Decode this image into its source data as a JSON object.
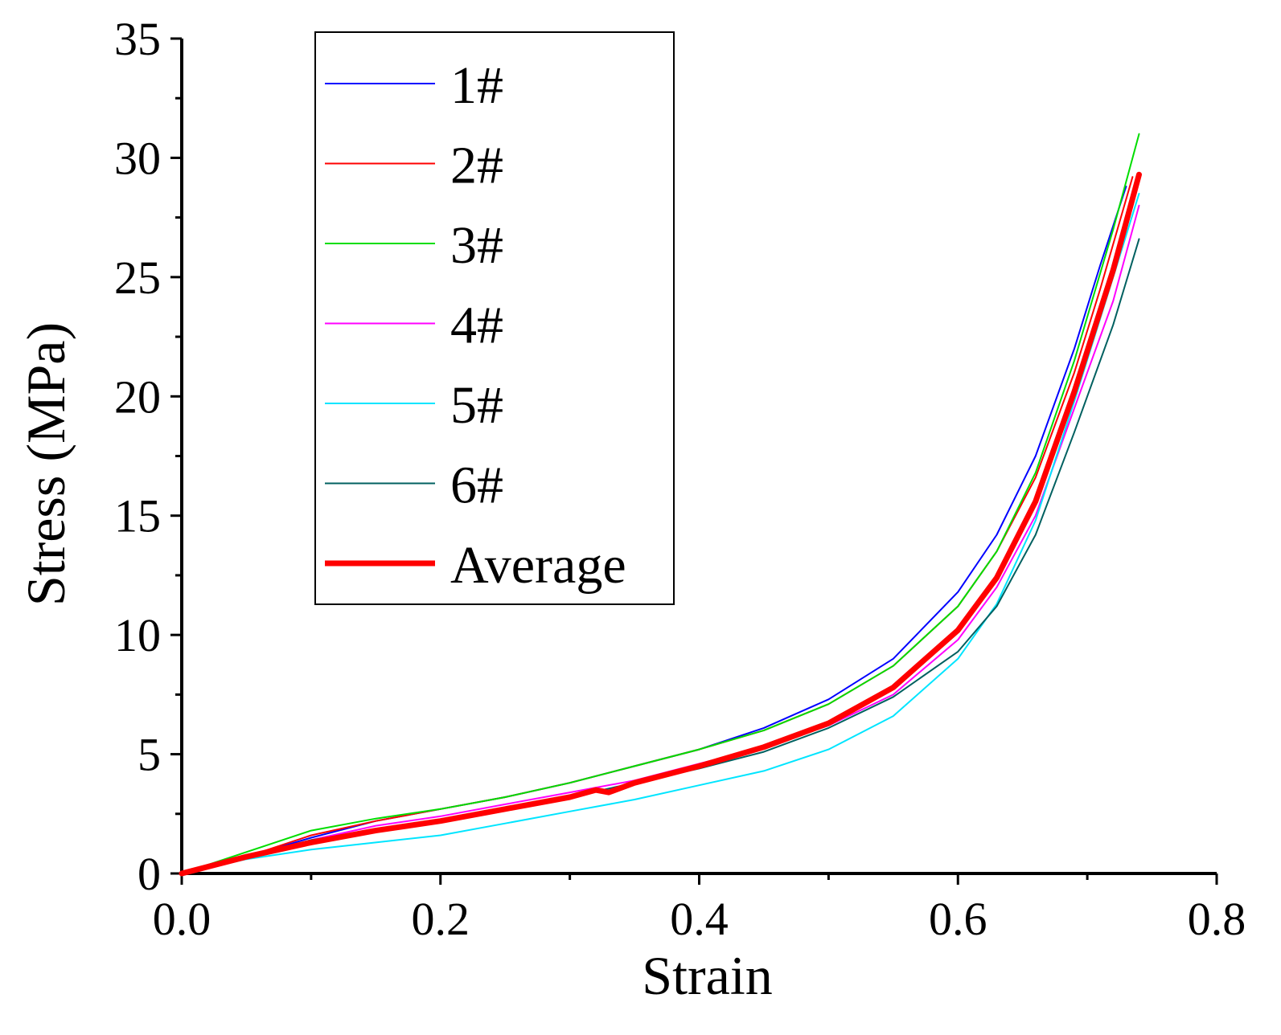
{
  "chart_data": {
    "type": "line",
    "title": "",
    "xlabel": "Strain",
    "ylabel": "Stress (MPa)",
    "xlim": [
      0,
      0.8
    ],
    "ylim": [
      0,
      35
    ],
    "xticks": [
      "0.0",
      "0.2",
      "0.4",
      "0.6",
      "0.8"
    ],
    "yticks": [
      "0",
      "5",
      "10",
      "15",
      "20",
      "25",
      "30",
      "35"
    ],
    "grid": false,
    "legend_position": "top-left",
    "series": [
      {
        "name": "1#",
        "color": "#0000ff",
        "width": 2,
        "x": [
          0,
          0.05,
          0.1,
          0.15,
          0.2,
          0.25,
          0.3,
          0.35,
          0.4,
          0.45,
          0.5,
          0.55,
          0.6,
          0.63,
          0.66,
          0.69,
          0.71,
          0.73
        ],
        "y": [
          0,
          0.7,
          1.5,
          2.2,
          2.7,
          3.2,
          3.8,
          4.5,
          5.2,
          6.1,
          7.3,
          9.0,
          11.8,
          14.2,
          17.5,
          22.0,
          25.5,
          28.8
        ]
      },
      {
        "name": "2#",
        "color": "#ff0000",
        "width": 2,
        "x": [
          0,
          0.05,
          0.1,
          0.15,
          0.2,
          0.25,
          0.3,
          0.35,
          0.4,
          0.45,
          0.5,
          0.55,
          0.6,
          0.63,
          0.66,
          0.69,
          0.71,
          0.735
        ],
        "y": [
          0,
          0.7,
          1.6,
          2.2,
          2.7,
          3.2,
          3.8,
          4.5,
          5.2,
          6.0,
          7.1,
          8.7,
          11.2,
          13.5,
          16.6,
          21.0,
          24.5,
          29.2
        ]
      },
      {
        "name": "3#",
        "color": "#00dd00",
        "width": 2,
        "x": [
          0,
          0.05,
          0.1,
          0.15,
          0.2,
          0.25,
          0.3,
          0.35,
          0.4,
          0.45,
          0.5,
          0.55,
          0.6,
          0.63,
          0.66,
          0.69,
          0.72,
          0.74
        ],
        "y": [
          0,
          0.9,
          1.8,
          2.3,
          2.7,
          3.2,
          3.8,
          4.5,
          5.2,
          6.0,
          7.1,
          8.7,
          11.2,
          13.5,
          16.8,
          21.5,
          27.0,
          31.0
        ]
      },
      {
        "name": "4#",
        "color": "#ff00ff",
        "width": 2,
        "x": [
          0,
          0.05,
          0.1,
          0.15,
          0.2,
          0.25,
          0.3,
          0.35,
          0.4,
          0.45,
          0.5,
          0.55,
          0.6,
          0.63,
          0.66,
          0.69,
          0.72,
          0.74
        ],
        "y": [
          0,
          0.7,
          1.4,
          2.0,
          2.4,
          2.9,
          3.4,
          3.9,
          4.6,
          5.3,
          6.2,
          7.5,
          9.8,
          12.0,
          15.0,
          19.5,
          24.0,
          28.0
        ]
      },
      {
        "name": "5#",
        "color": "#00e5ff",
        "width": 2,
        "x": [
          0,
          0.05,
          0.1,
          0.15,
          0.2,
          0.25,
          0.3,
          0.35,
          0.4,
          0.45,
          0.5,
          0.55,
          0.6,
          0.63,
          0.66,
          0.69,
          0.72,
          0.74
        ],
        "y": [
          0,
          0.6,
          1.0,
          1.3,
          1.6,
          2.1,
          2.6,
          3.1,
          3.7,
          4.3,
          5.2,
          6.6,
          9.0,
          11.3,
          14.8,
          19.8,
          25.0,
          28.5
        ]
      },
      {
        "name": "6#",
        "color": "#006060",
        "width": 2,
        "x": [
          0,
          0.05,
          0.1,
          0.15,
          0.2,
          0.25,
          0.3,
          0.35,
          0.4,
          0.45,
          0.5,
          0.55,
          0.6,
          0.63,
          0.66,
          0.69,
          0.72,
          0.74
        ],
        "y": [
          0,
          0.7,
          1.4,
          1.8,
          2.2,
          2.7,
          3.2,
          3.8,
          4.4,
          5.1,
          6.1,
          7.4,
          9.3,
          11.2,
          14.2,
          18.5,
          23.0,
          26.6
        ]
      },
      {
        "name": "Average",
        "color": "#ff0000",
        "width": 7,
        "x": [
          0,
          0.05,
          0.1,
          0.15,
          0.2,
          0.25,
          0.3,
          0.32,
          0.33,
          0.35,
          0.4,
          0.45,
          0.5,
          0.55,
          0.6,
          0.63,
          0.66,
          0.69,
          0.72,
          0.74
        ],
        "y": [
          0,
          0.7,
          1.3,
          1.8,
          2.2,
          2.7,
          3.2,
          3.5,
          3.4,
          3.8,
          4.5,
          5.3,
          6.3,
          7.8,
          10.2,
          12.4,
          15.6,
          20.2,
          25.3,
          29.3
        ]
      }
    ]
  }
}
